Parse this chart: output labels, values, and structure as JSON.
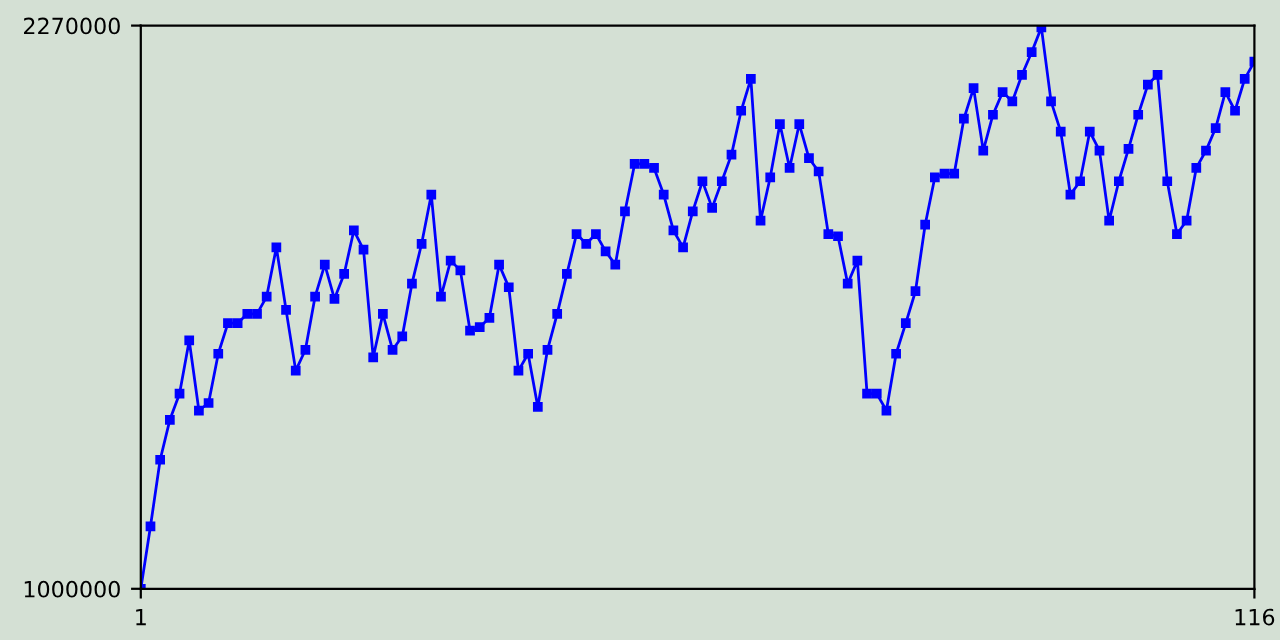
{
  "chart_data": {
    "type": "line",
    "x": [
      1,
      2,
      3,
      4,
      5,
      6,
      7,
      8,
      9,
      10,
      11,
      12,
      13,
      14,
      15,
      16,
      17,
      18,
      19,
      20,
      21,
      22,
      23,
      24,
      25,
      26,
      27,
      28,
      29,
      30,
      31,
      32,
      33,
      34,
      35,
      36,
      37,
      38,
      39,
      40,
      41,
      42,
      43,
      44,
      45,
      46,
      47,
      48,
      49,
      50,
      51,
      52,
      53,
      54,
      55,
      56,
      57,
      58,
      59,
      60,
      61,
      62,
      63,
      64,
      65,
      66,
      67,
      68,
      69,
      70,
      71,
      72,
      73,
      74,
      75,
      76,
      77,
      78,
      79,
      80,
      81,
      82,
      83,
      84,
      85,
      86,
      87,
      88,
      89,
      90,
      91,
      92,
      93,
      94,
      95,
      96,
      97,
      98,
      99,
      100,
      101,
      102,
      103,
      104,
      105,
      106,
      107,
      108,
      109,
      110,
      111,
      112,
      113,
      114,
      115,
      116
    ],
    "series": [
      {
        "color": "#0000ff",
        "values": [
          1000000,
          1141000,
          1291000,
          1381000,
          1440000,
          1560000,
          1402000,
          1419000,
          1530000,
          1599000,
          1599000,
          1620000,
          1620000,
          1659000,
          1770000,
          1629000,
          1492000,
          1539000,
          1659000,
          1731000,
          1654000,
          1710000,
          1808000,
          1765000,
          1522000,
          1620000,
          1539000,
          1569000,
          1688000,
          1778000,
          1889000,
          1659000,
          1740000,
          1718000,
          1582000,
          1590000,
          1611000,
          1731000,
          1680000,
          1492000,
          1530000,
          1410000,
          1539000,
          1620000,
          1710000,
          1800000,
          1778000,
          1800000,
          1761000,
          1731000,
          1851000,
          1958000,
          1958000,
          1949000,
          1889000,
          1808000,
          1770000,
          1851000,
          1919000,
          1859000,
          1919000,
          1979000,
          2078000,
          2150000,
          1830000,
          1928000,
          2048000,
          1949000,
          2048000,
          1971000,
          1941000,
          1800000,
          1795000,
          1688000,
          1740000,
          1440000,
          1440000,
          1402000,
          1530000,
          1599000,
          1671000,
          1821000,
          1928000,
          1936000,
          1936000,
          2060000,
          2129000,
          1988000,
          2069000,
          2120000,
          2099000,
          2159000,
          2210000,
          2266000,
          2099000,
          2031000,
          1889000,
          1919000,
          2031000,
          1988000,
          1830000,
          1919000,
          1992000,
          2069000,
          2137000,
          2159000,
          1919000,
          1800000,
          1830000,
          1949000,
          1988000,
          2039000,
          2120000,
          2078000,
          2150000,
          2189000
        ]
      }
    ],
    "xlim": [
      1,
      116
    ],
    "xticks": [
      1,
      116
    ],
    "ylim": [
      1000000,
      2270000
    ],
    "yticks": [
      1000000,
      2270000
    ],
    "marker": "square",
    "line_style": "solid",
    "grid": false,
    "legend": false
  }
}
